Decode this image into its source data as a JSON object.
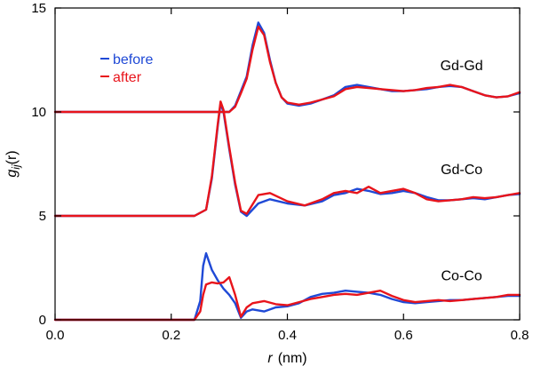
{
  "chart_data": {
    "type": "line",
    "xlabel": {
      "var": "r",
      "unit": "(nm)"
    },
    "ylabel": {
      "base": "g",
      "sub": "ij",
      "arg": "(r)"
    },
    "xlim": [
      0.0,
      0.8
    ],
    "ylim": [
      0,
      15
    ],
    "x_ticks": [
      0.0,
      0.2,
      0.4,
      0.6,
      0.8
    ],
    "x_tick_labels": [
      "0.0",
      "0.2",
      "0.4",
      "0.6",
      "0.8"
    ],
    "y_ticks": [
      0,
      5,
      10,
      15
    ],
    "y_tick_labels": [
      "0",
      "5",
      "10",
      "15"
    ],
    "grid": false,
    "legend": {
      "placement": "top-left",
      "entries": [
        {
          "label": "before",
          "color": "#1f49d6"
        },
        {
          "label": "after",
          "color": "#e8141b"
        }
      ]
    },
    "series_labels": [
      {
        "text": "Gd-Gd",
        "x": 0.7,
        "y": 12.0
      },
      {
        "text": "Gd-Co",
        "x": 0.7,
        "y": 7.0
      },
      {
        "text": "Co-Co",
        "x": 0.7,
        "y": 1.9
      }
    ],
    "series": [
      {
        "name": "before",
        "group": "Gd-Gd",
        "color": "#1f49d6",
        "x": [
          0.0,
          0.2,
          0.3,
          0.31,
          0.32,
          0.33,
          0.34,
          0.35,
          0.36,
          0.37,
          0.38,
          0.39,
          0.4,
          0.42,
          0.44,
          0.46,
          0.48,
          0.5,
          0.52,
          0.54,
          0.56,
          0.58,
          0.6,
          0.62,
          0.64,
          0.66,
          0.68,
          0.7,
          0.72,
          0.74,
          0.76,
          0.78,
          0.8
        ],
        "y": [
          10.0,
          10.0,
          10.0,
          10.3,
          11.0,
          11.7,
          13.2,
          14.3,
          13.8,
          12.5,
          11.4,
          10.7,
          10.4,
          10.3,
          10.4,
          10.6,
          10.8,
          11.2,
          11.3,
          11.2,
          11.1,
          11.0,
          11.0,
          11.05,
          11.1,
          11.2,
          11.25,
          11.2,
          11.0,
          10.8,
          10.7,
          10.75,
          10.9
        ]
      },
      {
        "name": "after",
        "group": "Gd-Gd",
        "color": "#e8141b",
        "x": [
          0.0,
          0.2,
          0.3,
          0.31,
          0.32,
          0.33,
          0.34,
          0.35,
          0.36,
          0.37,
          0.38,
          0.39,
          0.4,
          0.42,
          0.44,
          0.46,
          0.48,
          0.5,
          0.52,
          0.54,
          0.56,
          0.58,
          0.6,
          0.62,
          0.64,
          0.66,
          0.68,
          0.7,
          0.72,
          0.74,
          0.76,
          0.78,
          0.8
        ],
        "y": [
          10.0,
          10.0,
          10.0,
          10.25,
          10.9,
          11.6,
          13.0,
          14.1,
          13.7,
          12.4,
          11.4,
          10.7,
          10.45,
          10.35,
          10.45,
          10.6,
          10.75,
          11.1,
          11.2,
          11.15,
          11.1,
          11.05,
          11.0,
          11.05,
          11.15,
          11.2,
          11.3,
          11.2,
          11.0,
          10.8,
          10.7,
          10.75,
          10.95
        ]
      },
      {
        "name": "before",
        "group": "Gd-Co",
        "color": "#1f49d6",
        "x": [
          0.0,
          0.24,
          0.26,
          0.27,
          0.28,
          0.285,
          0.29,
          0.3,
          0.31,
          0.32,
          0.33,
          0.35,
          0.37,
          0.4,
          0.43,
          0.46,
          0.48,
          0.5,
          0.52,
          0.54,
          0.56,
          0.58,
          0.6,
          0.62,
          0.64,
          0.66,
          0.68,
          0.7,
          0.72,
          0.74,
          0.76,
          0.78,
          0.8
        ],
        "y": [
          5.0,
          5.0,
          5.3,
          6.8,
          9.3,
          10.4,
          10.0,
          8.2,
          6.5,
          5.2,
          5.0,
          5.6,
          5.8,
          5.6,
          5.5,
          5.7,
          6.0,
          6.1,
          6.3,
          6.2,
          6.05,
          6.1,
          6.2,
          6.1,
          5.9,
          5.75,
          5.75,
          5.8,
          5.85,
          5.8,
          5.9,
          6.0,
          6.05
        ]
      },
      {
        "name": "after",
        "group": "Gd-Co",
        "color": "#e8141b",
        "x": [
          0.0,
          0.24,
          0.26,
          0.27,
          0.28,
          0.285,
          0.29,
          0.3,
          0.31,
          0.32,
          0.33,
          0.35,
          0.37,
          0.4,
          0.43,
          0.46,
          0.48,
          0.5,
          0.52,
          0.54,
          0.56,
          0.58,
          0.6,
          0.62,
          0.64,
          0.66,
          0.68,
          0.7,
          0.72,
          0.74,
          0.76,
          0.78,
          0.8
        ],
        "y": [
          5.0,
          5.0,
          5.3,
          6.9,
          9.4,
          10.5,
          10.1,
          8.3,
          6.6,
          5.25,
          5.1,
          6.0,
          6.1,
          5.7,
          5.5,
          5.8,
          6.1,
          6.2,
          6.1,
          6.4,
          6.1,
          6.2,
          6.3,
          6.1,
          5.8,
          5.7,
          5.75,
          5.8,
          5.9,
          5.85,
          5.9,
          6.0,
          6.1
        ]
      },
      {
        "name": "before",
        "group": "Co-Co",
        "color": "#1f49d6",
        "x": [
          0.0,
          0.24,
          0.25,
          0.255,
          0.26,
          0.27,
          0.28,
          0.29,
          0.3,
          0.31,
          0.32,
          0.33,
          0.34,
          0.36,
          0.38,
          0.4,
          0.42,
          0.44,
          0.46,
          0.48,
          0.5,
          0.52,
          0.54,
          0.56,
          0.58,
          0.6,
          0.62,
          0.64,
          0.66,
          0.68,
          0.7,
          0.72,
          0.74,
          0.76,
          0.78,
          0.8
        ],
        "y": [
          0.0,
          0.0,
          0.9,
          2.6,
          3.2,
          2.4,
          1.9,
          1.5,
          1.2,
          0.8,
          0.1,
          0.4,
          0.5,
          0.4,
          0.6,
          0.65,
          0.8,
          1.1,
          1.25,
          1.3,
          1.4,
          1.35,
          1.3,
          1.2,
          1.0,
          0.85,
          0.8,
          0.85,
          0.9,
          0.95,
          0.95,
          1.0,
          1.05,
          1.1,
          1.15,
          1.15
        ]
      },
      {
        "name": "after",
        "group": "Co-Co",
        "color": "#e8141b",
        "x": [
          0.0,
          0.24,
          0.25,
          0.255,
          0.26,
          0.27,
          0.28,
          0.29,
          0.3,
          0.31,
          0.32,
          0.33,
          0.34,
          0.36,
          0.38,
          0.4,
          0.42,
          0.44,
          0.46,
          0.48,
          0.5,
          0.52,
          0.54,
          0.56,
          0.58,
          0.6,
          0.62,
          0.64,
          0.66,
          0.68,
          0.7,
          0.72,
          0.74,
          0.76,
          0.78,
          0.8
        ],
        "y": [
          0.0,
          0.0,
          0.4,
          1.2,
          1.7,
          1.8,
          1.75,
          1.8,
          2.05,
          1.2,
          0.15,
          0.6,
          0.8,
          0.9,
          0.75,
          0.7,
          0.85,
          1.0,
          1.1,
          1.2,
          1.25,
          1.2,
          1.3,
          1.4,
          1.15,
          0.95,
          0.85,
          0.9,
          0.95,
          0.9,
          0.95,
          1.0,
          1.05,
          1.1,
          1.2,
          1.2
        ]
      }
    ]
  }
}
